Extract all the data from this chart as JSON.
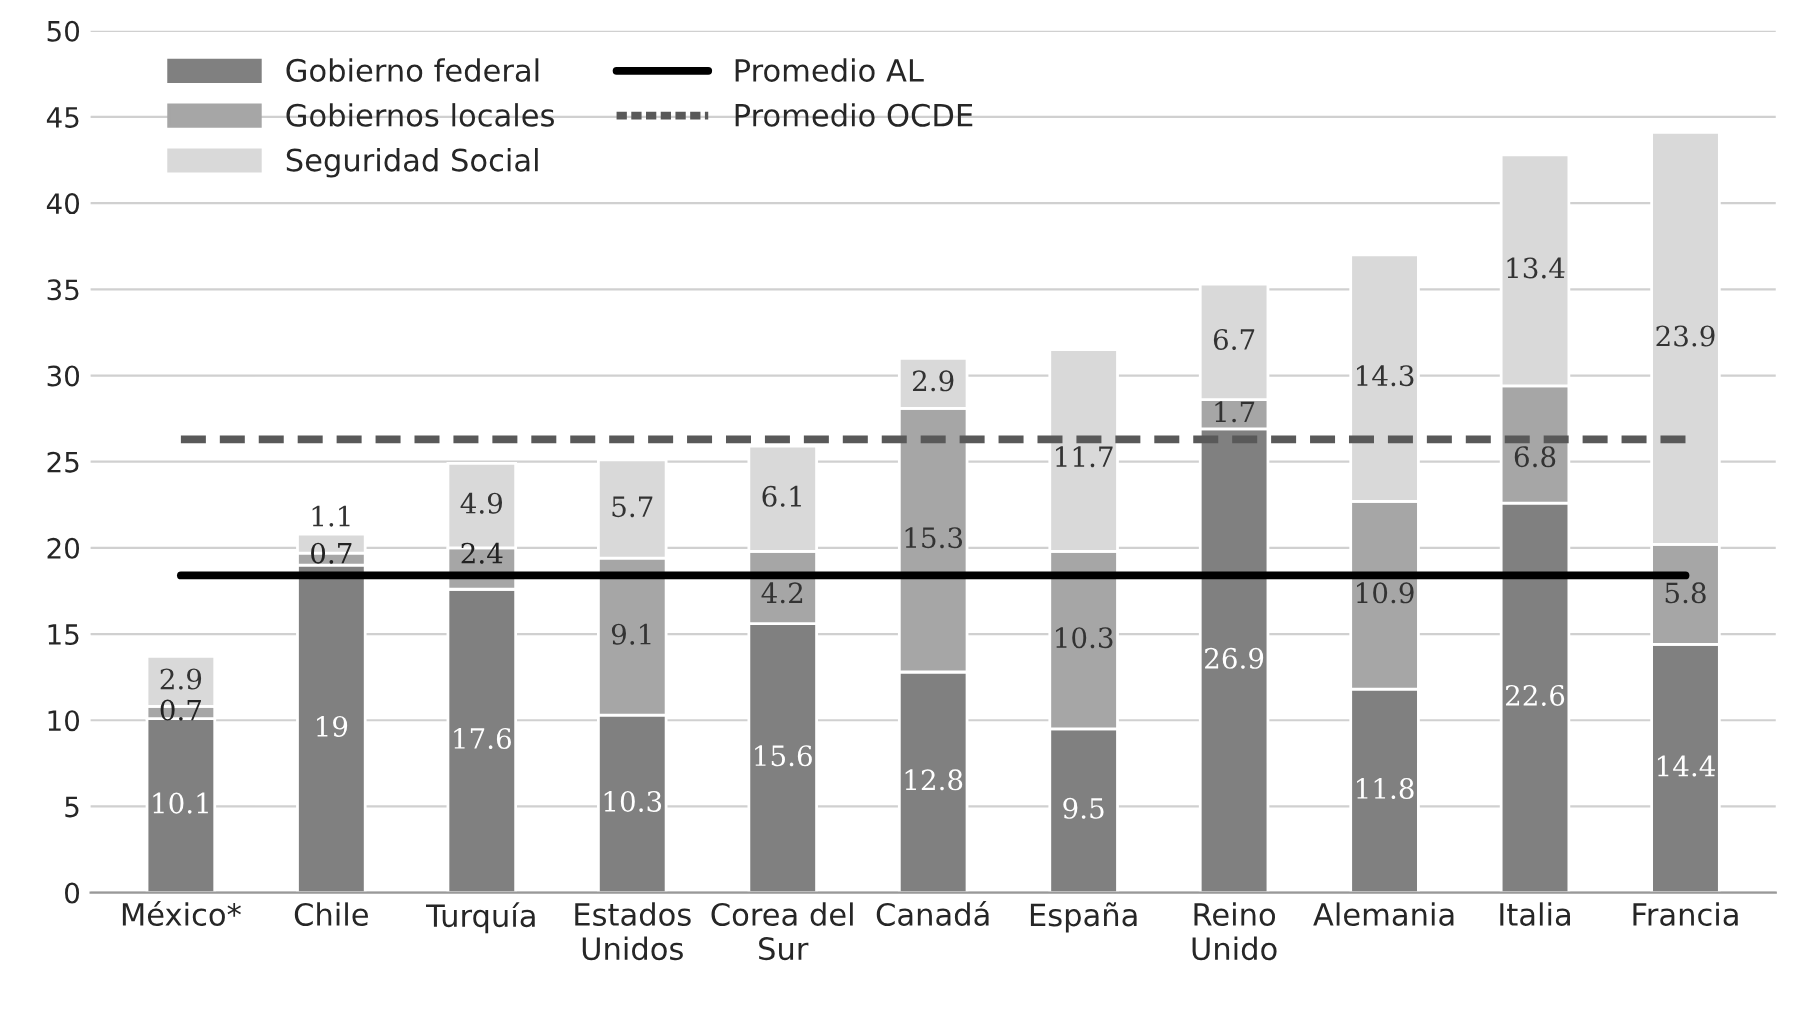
{
  "chart_data": {
    "type": "bar",
    "stacked": true,
    "categories": [
      "México*",
      "Chile",
      "Turquía",
      "Estados\nUnidos",
      "Corea del\nSur",
      "Canadá",
      "España",
      "Reino\nUnido",
      "Alemania",
      "Italia",
      "Francia"
    ],
    "series": [
      {
        "name": "Gobierno federal",
        "color": "#808080",
        "values": [
          10.1,
          19,
          17.6,
          10.3,
          15.6,
          12.8,
          9.5,
          26.9,
          11.8,
          22.6,
          14.4
        ],
        "value_labels": [
          "10.1",
          "19",
          "17.6",
          "10.3",
          "15.6",
          "12.8",
          "9.5",
          "26.9",
          "11.8",
          "22.6",
          "14.4"
        ]
      },
      {
        "name": "Gobiernos locales",
        "color": "#a6a6a6",
        "values": [
          0.7,
          0.7,
          2.4,
          9.1,
          4.2,
          15.3,
          10.3,
          1.7,
          10.9,
          6.8,
          5.8
        ],
        "value_labels": [
          "0.7",
          "0.7",
          "2.4",
          "9.1",
          "4.2",
          "15.3",
          "10.3",
          "1.7",
          "10.9",
          "6.8",
          "5.8"
        ]
      },
      {
        "name": "Seguridad Social",
        "color": "#d9d9d9",
        "values": [
          2.9,
          1.1,
          4.9,
          5.7,
          6.1,
          2.9,
          11.7,
          6.7,
          14.3,
          13.4,
          23.9
        ],
        "value_labels": [
          "2.9",
          "1.1",
          "4.9",
          "5.7",
          "6.1",
          "2.9",
          "11.7",
          "6.7",
          "14.3",
          "13.4",
          "23.9"
        ]
      },
      {
        "name": "Promedio AL",
        "type": "line",
        "color": "#000000",
        "line_style": "solid",
        "values": [
          18.4,
          18.4,
          18.4,
          18.4,
          18.4,
          18.4,
          18.4,
          18.4,
          18.4,
          18.4,
          18.4
        ]
      },
      {
        "name": "Promedio OCDE",
        "type": "line",
        "color": "#595959",
        "line_style": "dashed",
        "values": [
          26.3,
          26.3,
          26.3,
          26.3,
          26.3,
          26.3,
          26.3,
          26.3,
          26.3,
          26.3,
          26.3
        ]
      }
    ],
    "ylim": [
      0,
      50
    ],
    "yticks": [
      0,
      5,
      10,
      15,
      20,
      25,
      30,
      35,
      40,
      45,
      50
    ],
    "grid": "y",
    "legend": "top left"
  }
}
